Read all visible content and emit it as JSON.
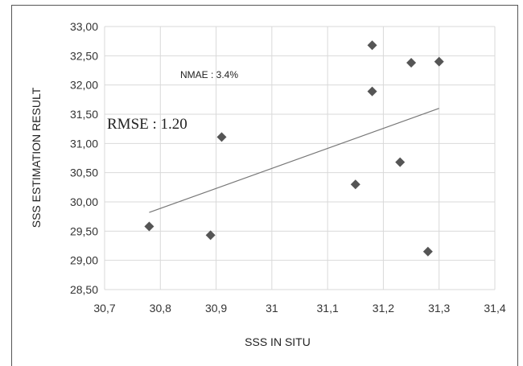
{
  "chart_data": {
    "type": "scatter",
    "xlabel": "SSS IN SITU",
    "ylabel": "SSS ESTIMATION RESULT",
    "xlim": [
      30.7,
      31.4
    ],
    "ylim": [
      28.5,
      33.0
    ],
    "xticks": [
      "30,7",
      "30,8",
      "30,9",
      "31",
      "31,1",
      "31,2",
      "31,3",
      "31,4"
    ],
    "yticks": [
      "28,50",
      "29,00",
      "29,50",
      "30,00",
      "30,50",
      "31,00",
      "31,50",
      "32,00",
      "32,50",
      "33,00"
    ],
    "grid": true,
    "points": [
      {
        "x": 30.78,
        "y": 29.58
      },
      {
        "x": 30.89,
        "y": 29.43
      },
      {
        "x": 30.91,
        "y": 31.11
      },
      {
        "x": 31.15,
        "y": 30.3
      },
      {
        "x": 31.18,
        "y": 32.68
      },
      {
        "x": 31.18,
        "y": 31.89
      },
      {
        "x": 31.23,
        "y": 30.68
      },
      {
        "x": 31.25,
        "y": 32.38
      },
      {
        "x": 31.28,
        "y": 29.15
      },
      {
        "x": 31.3,
        "y": 32.4
      }
    ],
    "trendline": {
      "x": [
        30.78,
        31.3
      ],
      "y": [
        29.82,
        31.6
      ]
    },
    "marker_color": "#555555",
    "line_color": "#777777",
    "grid_color": "#d9d9d9",
    "annotations": [
      "NMAE : 3.4%",
      "RMSE : 1.20"
    ]
  }
}
